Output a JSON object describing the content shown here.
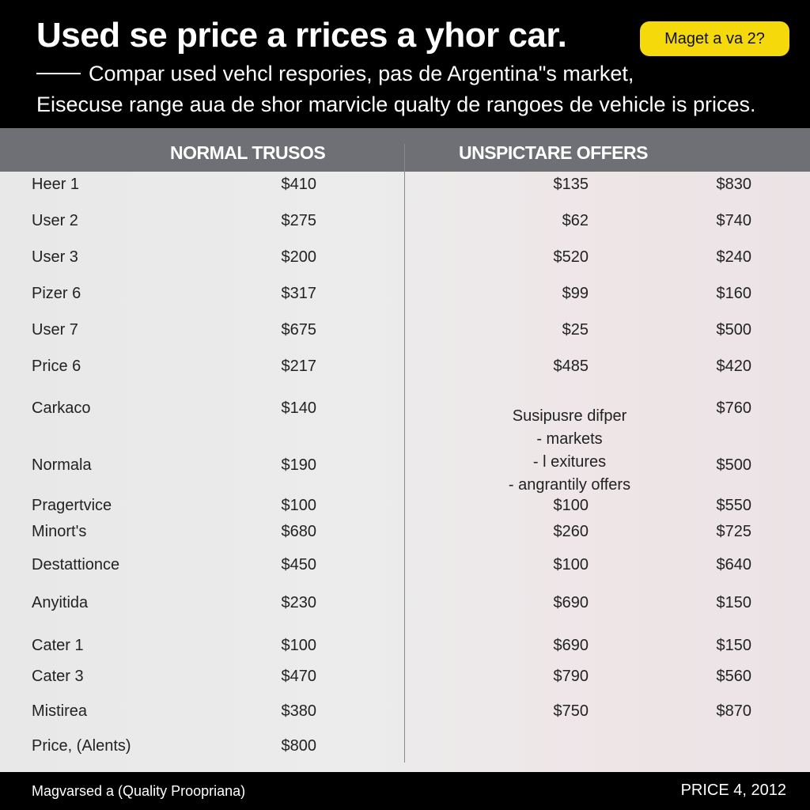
{
  "header": {
    "title": "Used se price a rrices a yhor car.",
    "badge": "Maget a va 2?",
    "subtitle1": "Compar used vehcl respories, pas de Argentina\"s market,",
    "subtitle2": "Eisecuse range aua de shor marvicle qualty de rangoes de vehicle is prices."
  },
  "table": {
    "col1_title": "NORMAL TRUSOS",
    "col2_title": "UNSPICTARE OFFERS",
    "rows": [
      {
        "label": "Heer 1",
        "v1": "$410",
        "v2": "$135",
        "v3": "$830"
      },
      {
        "label": "User 2",
        "v1": "$275",
        "v2": "$62",
        "v3": "$740"
      },
      {
        "label": "User 3",
        "v1": "$200",
        "v2": "$520",
        "v3": "$240"
      },
      {
        "label": "Pizer 6",
        "v1": "$317",
        "v2": "$99",
        "v3": "$160"
      },
      {
        "label": "User 7",
        "v1": "$675",
        "v2": "$25",
        "v3": "$500"
      },
      {
        "label": "Price 6",
        "v1": "$217",
        "v2": "$485",
        "v3": "$420"
      },
      {
        "label": "Carkaco",
        "v1": "$140",
        "v2": "",
        "v3": "$760"
      },
      {
        "label": "Normala",
        "v1": "$190",
        "v2": "",
        "v3": "$500"
      },
      {
        "label": "Pragertvice",
        "v1": "$100",
        "v2": "$100",
        "v3": "$550"
      },
      {
        "label": "Minort's",
        "v1": "$680",
        "v2": "$260",
        "v3": "$725"
      },
      {
        "label": "Destattionce",
        "v1": "$450",
        "v2": "$100",
        "v3": "$640"
      },
      {
        "label": "Anyitida",
        "v1": "$230",
        "v2": "$690",
        "v3": "$150"
      },
      {
        "label": "Cater 1",
        "v1": "$100",
        "v2": "$690",
        "v3": "$150"
      },
      {
        "label": "Cater 3",
        "v1": "$470",
        "v2": "$790",
        "v3": "$560"
      },
      {
        "label": "Mistirea",
        "v1": "$380",
        "v2": "$750",
        "v3": "$870"
      },
      {
        "label": "Price, (Alents)",
        "v1": "$800",
        "v2": "",
        "v3": ""
      }
    ],
    "note_lines": [
      "Susipusre difper",
      "- markets",
      "- l exitures",
      "- angrantily offers"
    ]
  },
  "footer": {
    "left": "Magvarsed a (Quality Proopriana)",
    "right": "PRICE 4, 2012"
  }
}
